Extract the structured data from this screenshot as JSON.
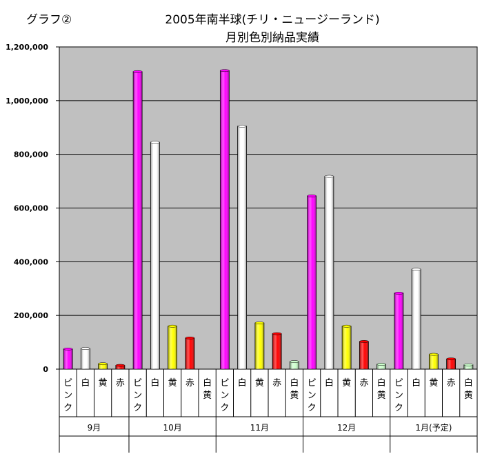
{
  "graph_label": "グラフ②",
  "chart_data": {
    "type": "bar",
    "title": "2005年南半球(チリ・ニュージーランド)",
    "subtitle": "月別色別納品実績",
    "xlabel": "",
    "ylabel": "",
    "ylim": [
      0,
      1200000
    ],
    "yticks": [
      "0",
      "200,000",
      "400,000",
      "600,000",
      "800,000",
      "1,000,000",
      "1,200,000"
    ],
    "grid": true,
    "groups": [
      {
        "label": "9月",
        "bars": [
          {
            "category": "ピンク",
            "value": 75000
          },
          {
            "category": "白",
            "value": 77000
          },
          {
            "category": "黄",
            "value": 20000
          },
          {
            "category": "赤",
            "value": 14000
          }
        ]
      },
      {
        "label": "10月",
        "bars": [
          {
            "category": "ピンク",
            "value": 1108000
          },
          {
            "category": "白",
            "value": 845000
          },
          {
            "category": "黄",
            "value": 160000
          },
          {
            "category": "赤",
            "value": 116000
          },
          {
            "category": "白黄",
            "value": 0
          }
        ]
      },
      {
        "label": "11月",
        "bars": [
          {
            "category": "ピンク",
            "value": 1112000
          },
          {
            "category": "白",
            "value": 905000
          },
          {
            "category": "黄",
            "value": 172000
          },
          {
            "category": "赤",
            "value": 132000
          },
          {
            "category": "白黄",
            "value": 28000
          }
        ]
      },
      {
        "label": "12月",
        "bars": [
          {
            "category": "ピンク",
            "value": 645000
          },
          {
            "category": "白",
            "value": 718000
          },
          {
            "category": "黄",
            "value": 160000
          },
          {
            "category": "赤",
            "value": 103000
          },
          {
            "category": "白黄",
            "value": 18000
          }
        ]
      },
      {
        "label": "1月(予定)",
        "bars": [
          {
            "category": "ピンク",
            "value": 283000
          },
          {
            "category": "白",
            "value": 372000
          },
          {
            "category": "黄",
            "value": 55000
          },
          {
            "category": "赤",
            "value": 38000
          },
          {
            "category": "白黄",
            "value": 16000
          }
        ]
      }
    ],
    "colors": {
      "ピンク": "#ff00ff",
      "白": "#ffffff",
      "黄": "#ffff00",
      "赤": "#ff0000",
      "白黄": "#ccffcc"
    },
    "plot_background": "#c0c0c0"
  }
}
